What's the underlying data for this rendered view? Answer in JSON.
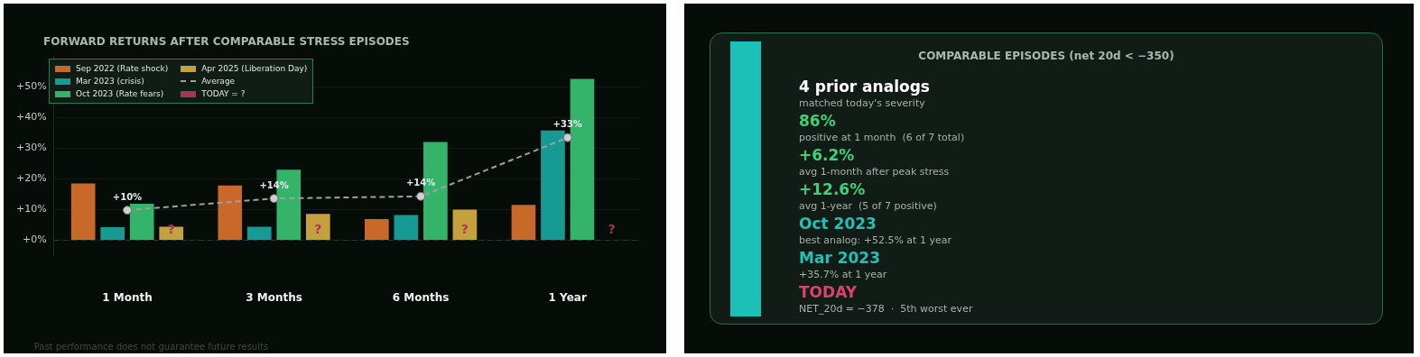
{
  "chart_data": [
    {
      "type": "bar",
      "title": "FORWARD RETURNS AFTER COMPARABLE STRESS EPISODES",
      "categories": [
        "1 Month",
        "3 Months",
        "6 Months",
        "1 Year"
      ],
      "series": [
        {
          "name": "Sep 2022 (Rate shock)",
          "color": "#c8692a",
          "values": [
            18.5,
            17.8,
            6.9,
            11.5
          ]
        },
        {
          "name": "Mar 2023 (crisis)",
          "color": "#179a93",
          "values": [
            4.3,
            4.4,
            8.2,
            35.7
          ]
        },
        {
          "name": "Oct 2023 (Rate fears)",
          "color": "#34b46a",
          "values": [
            11.9,
            23.0,
            32.0,
            52.5
          ]
        },
        {
          "name": "Apr 2025 (Liberation Day)",
          "color": "#c4a13e",
          "values": [
            4.4,
            8.6,
            10.0,
            null
          ]
        },
        {
          "name": "Average",
          "type": "line",
          "color": "#a0a0a0",
          "line_style": "dashed",
          "marker": "circle",
          "values": [
            9.8,
            13.6,
            14.3,
            33.4
          ],
          "value_labels": [
            "+10%",
            "+14%",
            "+14%",
            "+33%"
          ]
        },
        {
          "name": "TODAY = ?",
          "color": "#a8345a",
          "values": [
            null,
            null,
            null,
            null
          ],
          "value_labels": [
            "?",
            "?",
            "?",
            "?"
          ]
        }
      ],
      "ylim": [
        -5,
        60
      ],
      "yticks": [
        {
          "value": 0,
          "label": "+0%"
        },
        {
          "value": 10,
          "label": "+10%"
        },
        {
          "value": 20,
          "label": "+20%"
        },
        {
          "value": 30,
          "label": "+30%"
        },
        {
          "value": 40,
          "label": "+40%"
        },
        {
          "value": 50,
          "label": "+50%"
        }
      ],
      "grid": "y",
      "legend": "top left",
      "ref_lines": [
        {
          "axis": "y",
          "value": 0,
          "label": null,
          "color": "#2e3a33",
          "line_style": "dashed"
        }
      ],
      "annotations": [
        "Past performance does not guarantee future results"
      ]
    },
    {
      "type": "other",
      "title": "COMPARABLE EPISODES (net 20d < −350)",
      "annotations": [
        "4 prior analogs",
        "matched today's severity",
        "86%",
        "positive at 1 month  (6 of 7 total)",
        "+6.2%",
        "avg 1-month after peak stress",
        "+12.6%",
        "avg 1-year  (5 of 7 positive)",
        "Oct 2023",
        "best analog: +52.5% at 1 year",
        "Mar 2023",
        "+35.7% at 1 year",
        "TODAY",
        "NET_20d = −378  ·  5th worst ever"
      ]
    }
  ]
}
